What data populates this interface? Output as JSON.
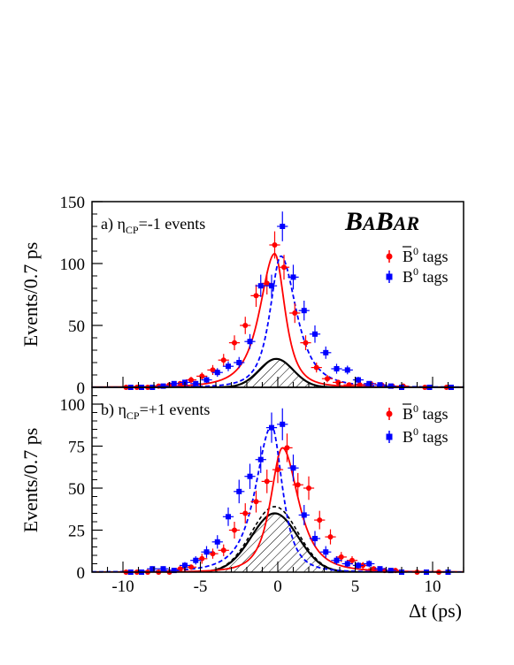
{
  "logo": {
    "text_big1": "B",
    "text_small1": "A",
    "text_big2": "B",
    "text_small2": "AR",
    "full": "BABAR"
  },
  "x_axis": {
    "label": "Δt (ps)",
    "ticks": [
      -10,
      -5,
      0,
      5,
      10
    ],
    "tick_labels": [
      "-10",
      "-5",
      "0",
      "5",
      "10"
    ]
  },
  "chart_data": [
    {
      "type": "scatter",
      "panel_label": "a) η",
      "panel_label_sub": "CP",
      "panel_label_rest": "=-1 events",
      "ylabel": "Events/0.7 ps",
      "xlabel": "",
      "xlim": [
        -12,
        12
      ],
      "ylim": [
        0,
        150
      ],
      "yticks": [
        0,
        50,
        100,
        150
      ],
      "ytick_labels": [
        "0",
        "50",
        "100",
        "150"
      ],
      "legend_position": "top-right",
      "series": [
        {
          "name": "B̄⁰ tags",
          "name_main": "B",
          "name_sup": "0",
          "name_rest": " tags",
          "color": "#ff0000",
          "marker": "circle",
          "points": [
            {
              "x": -9.8,
              "y": 0,
              "err": 1
            },
            {
              "x": -9.1,
              "y": 0,
              "err": 1
            },
            {
              "x": -8.4,
              "y": 0,
              "err": 1
            },
            {
              "x": -7.7,
              "y": 1,
              "err": 1
            },
            {
              "x": -7.0,
              "y": 2,
              "err": 1.5
            },
            {
              "x": -6.3,
              "y": 3,
              "err": 2
            },
            {
              "x": -5.6,
              "y": 6,
              "err": 2.5
            },
            {
              "x": -4.9,
              "y": 9,
              "err": 3
            },
            {
              "x": -4.2,
              "y": 14,
              "err": 4
            },
            {
              "x": -3.5,
              "y": 22,
              "err": 5
            },
            {
              "x": -2.8,
              "y": 36,
              "err": 6
            },
            {
              "x": -2.1,
              "y": 50,
              "err": 7
            },
            {
              "x": -1.4,
              "y": 74,
              "err": 9
            },
            {
              "x": -0.7,
              "y": 84,
              "err": 9
            },
            {
              "x": -0.2,
              "y": 115,
              "err": 11
            },
            {
              "x": 0.4,
              "y": 97,
              "err": 10
            },
            {
              "x": 1.1,
              "y": 60,
              "err": 8
            },
            {
              "x": 1.8,
              "y": 36,
              "err": 6
            },
            {
              "x": 2.5,
              "y": 16,
              "err": 4
            },
            {
              "x": 3.2,
              "y": 7,
              "err": 3
            },
            {
              "x": 3.9,
              "y": 4,
              "err": 2
            },
            {
              "x": 4.6,
              "y": 2,
              "err": 1.5
            },
            {
              "x": 5.3,
              "y": 2,
              "err": 1.5
            },
            {
              "x": 6.0,
              "y": 3,
              "err": 1.5
            },
            {
              "x": 6.7,
              "y": 2,
              "err": 1.5
            },
            {
              "x": 7.4,
              "y": 1,
              "err": 1
            },
            {
              "x": 8.1,
              "y": 1,
              "err": 1
            },
            {
              "x": 9.5,
              "y": 0,
              "err": 1
            },
            {
              "x": 10.9,
              "y": 0,
              "err": 1
            }
          ],
          "fit": {
            "amp": 108,
            "mu": -0.2,
            "tau_left": 1.45,
            "tau_right": 1.0,
            "line": "solid"
          }
        },
        {
          "name": "B⁰ tags",
          "name_main": "B",
          "name_sup": "0",
          "name_rest": " tags",
          "color": "#0000ff",
          "marker": "square",
          "points": [
            {
              "x": -9.5,
              "y": 0,
              "err": 1
            },
            {
              "x": -8.8,
              "y": 0,
              "err": 1
            },
            {
              "x": -8.1,
              "y": 0,
              "err": 1
            },
            {
              "x": -7.4,
              "y": 1,
              "err": 1
            },
            {
              "x": -6.7,
              "y": 3,
              "err": 1.5
            },
            {
              "x": -6.0,
              "y": 4,
              "err": 2
            },
            {
              "x": -5.3,
              "y": 3,
              "err": 2
            },
            {
              "x": -4.6,
              "y": 6,
              "err": 2.5
            },
            {
              "x": -3.9,
              "y": 12,
              "err": 3.5
            },
            {
              "x": -3.2,
              "y": 17,
              "err": 4
            },
            {
              "x": -2.5,
              "y": 20,
              "err": 4.5
            },
            {
              "x": -1.8,
              "y": 37,
              "err": 6
            },
            {
              "x": -1.1,
              "y": 82,
              "err": 9
            },
            {
              "x": -0.4,
              "y": 82,
              "err": 9
            },
            {
              "x": 0.3,
              "y": 130,
              "err": 12
            },
            {
              "x": 1.0,
              "y": 89,
              "err": 10
            },
            {
              "x": 1.7,
              "y": 62,
              "err": 8
            },
            {
              "x": 2.4,
              "y": 43,
              "err": 7
            },
            {
              "x": 3.1,
              "y": 28,
              "err": 5
            },
            {
              "x": 3.8,
              "y": 15,
              "err": 4
            },
            {
              "x": 4.5,
              "y": 14,
              "err": 3.5
            },
            {
              "x": 5.2,
              "y": 6,
              "err": 2.5
            },
            {
              "x": 5.9,
              "y": 3,
              "err": 2
            },
            {
              "x": 6.6,
              "y": 2,
              "err": 1.5
            },
            {
              "x": 7.3,
              "y": 1,
              "err": 1
            },
            {
              "x": 8.0,
              "y": 0,
              "err": 1
            },
            {
              "x": 9.8,
              "y": 0,
              "err": 1
            },
            {
              "x": 11.2,
              "y": 0,
              "err": 1
            }
          ],
          "fit": {
            "amp": 106,
            "mu": 0.2,
            "tau_left": 1.05,
            "tau_right": 1.5,
            "line": "dashed"
          }
        }
      ],
      "background": {
        "amp": 23,
        "mu": -0.1,
        "sigma": 1.1,
        "dashed_amp": 23
      }
    },
    {
      "type": "scatter",
      "panel_label": "b) η",
      "panel_label_sub": "CP",
      "panel_label_rest": "=+1 events",
      "ylabel": "Events/0.7 ps",
      "xlabel": "Δt (ps)",
      "xlim": [
        -12,
        12
      ],
      "ylim": [
        0,
        110
      ],
      "yticks": [
        0,
        25,
        50,
        75,
        100
      ],
      "ytick_labels": [
        "0",
        "25",
        "50",
        "75",
        "100"
      ],
      "legend_position": "top-right",
      "series": [
        {
          "name": "B̄⁰ tags",
          "name_main": "B",
          "name_sup": "0",
          "name_rest": " tags",
          "color": "#ff0000",
          "marker": "circle",
          "points": [
            {
              "x": -9.8,
              "y": 0,
              "err": 1
            },
            {
              "x": -9.1,
              "y": 0,
              "err": 1
            },
            {
              "x": -8.4,
              "y": 0,
              "err": 1
            },
            {
              "x": -7.7,
              "y": 0,
              "err": 1
            },
            {
              "x": -7.0,
              "y": 0,
              "err": 1
            },
            {
              "x": -6.3,
              "y": 2,
              "err": 1.5
            },
            {
              "x": -5.6,
              "y": 3,
              "err": 1.5
            },
            {
              "x": -4.9,
              "y": 8,
              "err": 3
            },
            {
              "x": -4.2,
              "y": 11,
              "err": 3
            },
            {
              "x": -3.5,
              "y": 13,
              "err": 3.5
            },
            {
              "x": -2.8,
              "y": 25,
              "err": 5
            },
            {
              "x": -2.1,
              "y": 35,
              "err": 6
            },
            {
              "x": -1.4,
              "y": 42,
              "err": 6.5
            },
            {
              "x": -0.7,
              "y": 54,
              "err": 7
            },
            {
              "x": 0.0,
              "y": 61,
              "err": 8
            },
            {
              "x": 0.6,
              "y": 74,
              "err": 8.5
            },
            {
              "x": 1.3,
              "y": 52,
              "err": 7
            },
            {
              "x": 2.0,
              "y": 50,
              "err": 7
            },
            {
              "x": 2.7,
              "y": 31,
              "err": 5.5
            },
            {
              "x": 3.4,
              "y": 21,
              "err": 4.5
            },
            {
              "x": 4.1,
              "y": 9,
              "err": 3
            },
            {
              "x": 4.8,
              "y": 7,
              "err": 2.5
            },
            {
              "x": 5.5,
              "y": 4,
              "err": 2
            },
            {
              "x": 6.2,
              "y": 2,
              "err": 1.5
            },
            {
              "x": 6.9,
              "y": 1,
              "err": 1
            },
            {
              "x": 7.6,
              "y": 1,
              "err": 1
            },
            {
              "x": 9.0,
              "y": 0,
              "err": 1
            },
            {
              "x": 10.4,
              "y": 0,
              "err": 1
            }
          ],
          "fit": {
            "amp": 74,
            "mu": 0.3,
            "tau_left": 1.15,
            "tau_right": 1.55,
            "line": "solid"
          }
        },
        {
          "name": "B⁰ tags",
          "name_main": "B",
          "name_sup": "0",
          "name_rest": " tags",
          "color": "#0000ff",
          "marker": "square",
          "points": [
            {
              "x": -9.5,
              "y": 0,
              "err": 1
            },
            {
              "x": -8.8,
              "y": 0,
              "err": 1
            },
            {
              "x": -8.1,
              "y": 2,
              "err": 1.5
            },
            {
              "x": -7.4,
              "y": 2,
              "err": 1.5
            },
            {
              "x": -6.7,
              "y": 1,
              "err": 1
            },
            {
              "x": -6.0,
              "y": 4,
              "err": 2
            },
            {
              "x": -5.3,
              "y": 7,
              "err": 2.5
            },
            {
              "x": -4.6,
              "y": 12,
              "err": 3.5
            },
            {
              "x": -3.9,
              "y": 18,
              "err": 4
            },
            {
              "x": -3.2,
              "y": 33,
              "err": 5.5
            },
            {
              "x": -2.5,
              "y": 48,
              "err": 7
            },
            {
              "x": -1.8,
              "y": 57,
              "err": 7.5
            },
            {
              "x": -1.1,
              "y": 67,
              "err": 8
            },
            {
              "x": -0.4,
              "y": 86,
              "err": 9
            },
            {
              "x": 0.3,
              "y": 88,
              "err": 9.5
            },
            {
              "x": 1.0,
              "y": 62,
              "err": 8
            },
            {
              "x": 1.7,
              "y": 34,
              "err": 6
            },
            {
              "x": 2.4,
              "y": 20,
              "err": 4.5
            },
            {
              "x": 3.1,
              "y": 12,
              "err": 3.5
            },
            {
              "x": 3.8,
              "y": 7,
              "err": 2.5
            },
            {
              "x": 4.5,
              "y": 5,
              "err": 2
            },
            {
              "x": 5.2,
              "y": 4,
              "err": 2
            },
            {
              "x": 5.9,
              "y": 5,
              "err": 2
            },
            {
              "x": 6.6,
              "y": 2,
              "err": 1.5
            },
            {
              "x": 7.3,
              "y": 1,
              "err": 1
            },
            {
              "x": 8.0,
              "y": 0,
              "err": 1
            },
            {
              "x": 9.6,
              "y": 0,
              "err": 1
            },
            {
              "x": 11.0,
              "y": 0,
              "err": 1
            }
          ],
          "fit": {
            "amp": 87,
            "mu": -0.4,
            "tau_left": 1.55,
            "tau_right": 1.05,
            "line": "dashed"
          }
        }
      ],
      "background": {
        "amp": 35,
        "mu": -0.2,
        "sigma": 1.5,
        "dashed_amp": 39
      }
    }
  ]
}
